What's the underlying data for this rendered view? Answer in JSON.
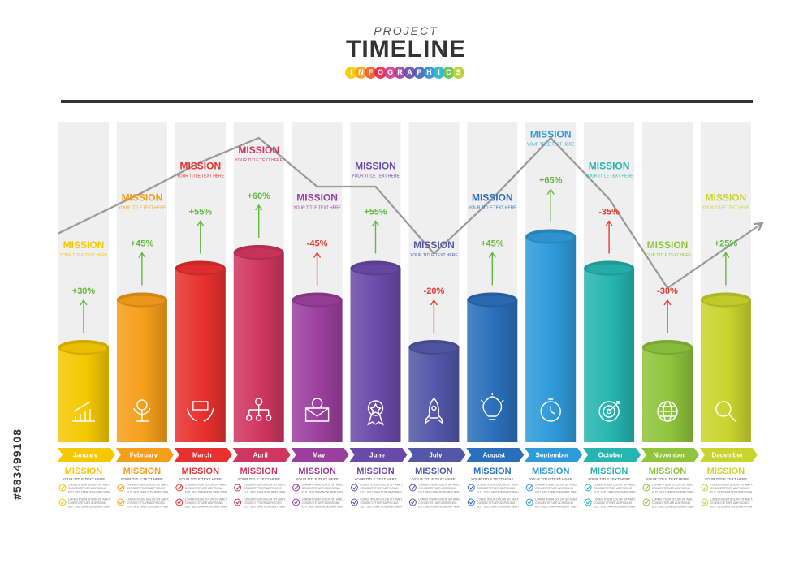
{
  "header": {
    "project": "PROJECT",
    "timeline": "TIMELINE",
    "infographics": [
      "I",
      "N",
      "F",
      "O",
      "G",
      "R",
      "A",
      "P",
      "H",
      "I",
      "C",
      "S"
    ],
    "dot_colors": [
      "#f6c800",
      "#f59e1a",
      "#ef5a2a",
      "#e8244a",
      "#d63c86",
      "#9b3f9e",
      "#6a4aa8",
      "#4a62b4",
      "#2f8ad2",
      "#23b5c6",
      "#62c24a",
      "#b3d12c"
    ]
  },
  "watermark": "#583499108",
  "chart_data": {
    "type": "bar",
    "categories": [
      "January",
      "February",
      "March",
      "April",
      "May",
      "June",
      "July",
      "August",
      "September",
      "October",
      "November",
      "December"
    ],
    "values": [
      30,
      45,
      55,
      60,
      -45,
      55,
      -20,
      45,
      65,
      -35,
      -30,
      25
    ],
    "value_labels": [
      "+30%",
      "+45%",
      "+55%",
      "+60%",
      "-45%",
      "+55%",
      "-20%",
      "+45%",
      "+65%",
      "-35%",
      "-30%",
      "+25%"
    ],
    "bar_heights": [
      30,
      45,
      55,
      60,
      45,
      55,
      30,
      45,
      65,
      55,
      30,
      45
    ],
    "trend_line": [
      45,
      65,
      80,
      92,
      68,
      68,
      35,
      62,
      92,
      62,
      18,
      50
    ],
    "colors": [
      "#f6c800",
      "#f59e1a",
      "#e8312f",
      "#cf3660",
      "#9b3f9e",
      "#6a4aa8",
      "#5257a8",
      "#2a6fbb",
      "#2f9ad9",
      "#26b5b0",
      "#8fc43c",
      "#c9d52c"
    ],
    "icons": [
      "growth-chart-icon",
      "money-plant-icon",
      "money-hands-icon",
      "team-hierarchy-icon",
      "email-gear-icon",
      "award-badge-icon",
      "rocket-icon",
      "light-bulb-icon",
      "stopwatch-icon",
      "target-icon",
      "globe-icon",
      "magnifier-icon"
    ],
    "upper_mission": "MISSION",
    "upper_subtitle": "YOUR TITLE TEXT HERE",
    "lower_mission": "MISSION",
    "lower_subtitle": "YOUR TITLE TEXT HERE",
    "lorem_lines": [
      "LOREM IPSUM DOLOR SIT AMET,",
      "CONSECTETUER ADIPISCING",
      "ELIT. SED DIAM NONUMMY NIBH"
    ]
  }
}
